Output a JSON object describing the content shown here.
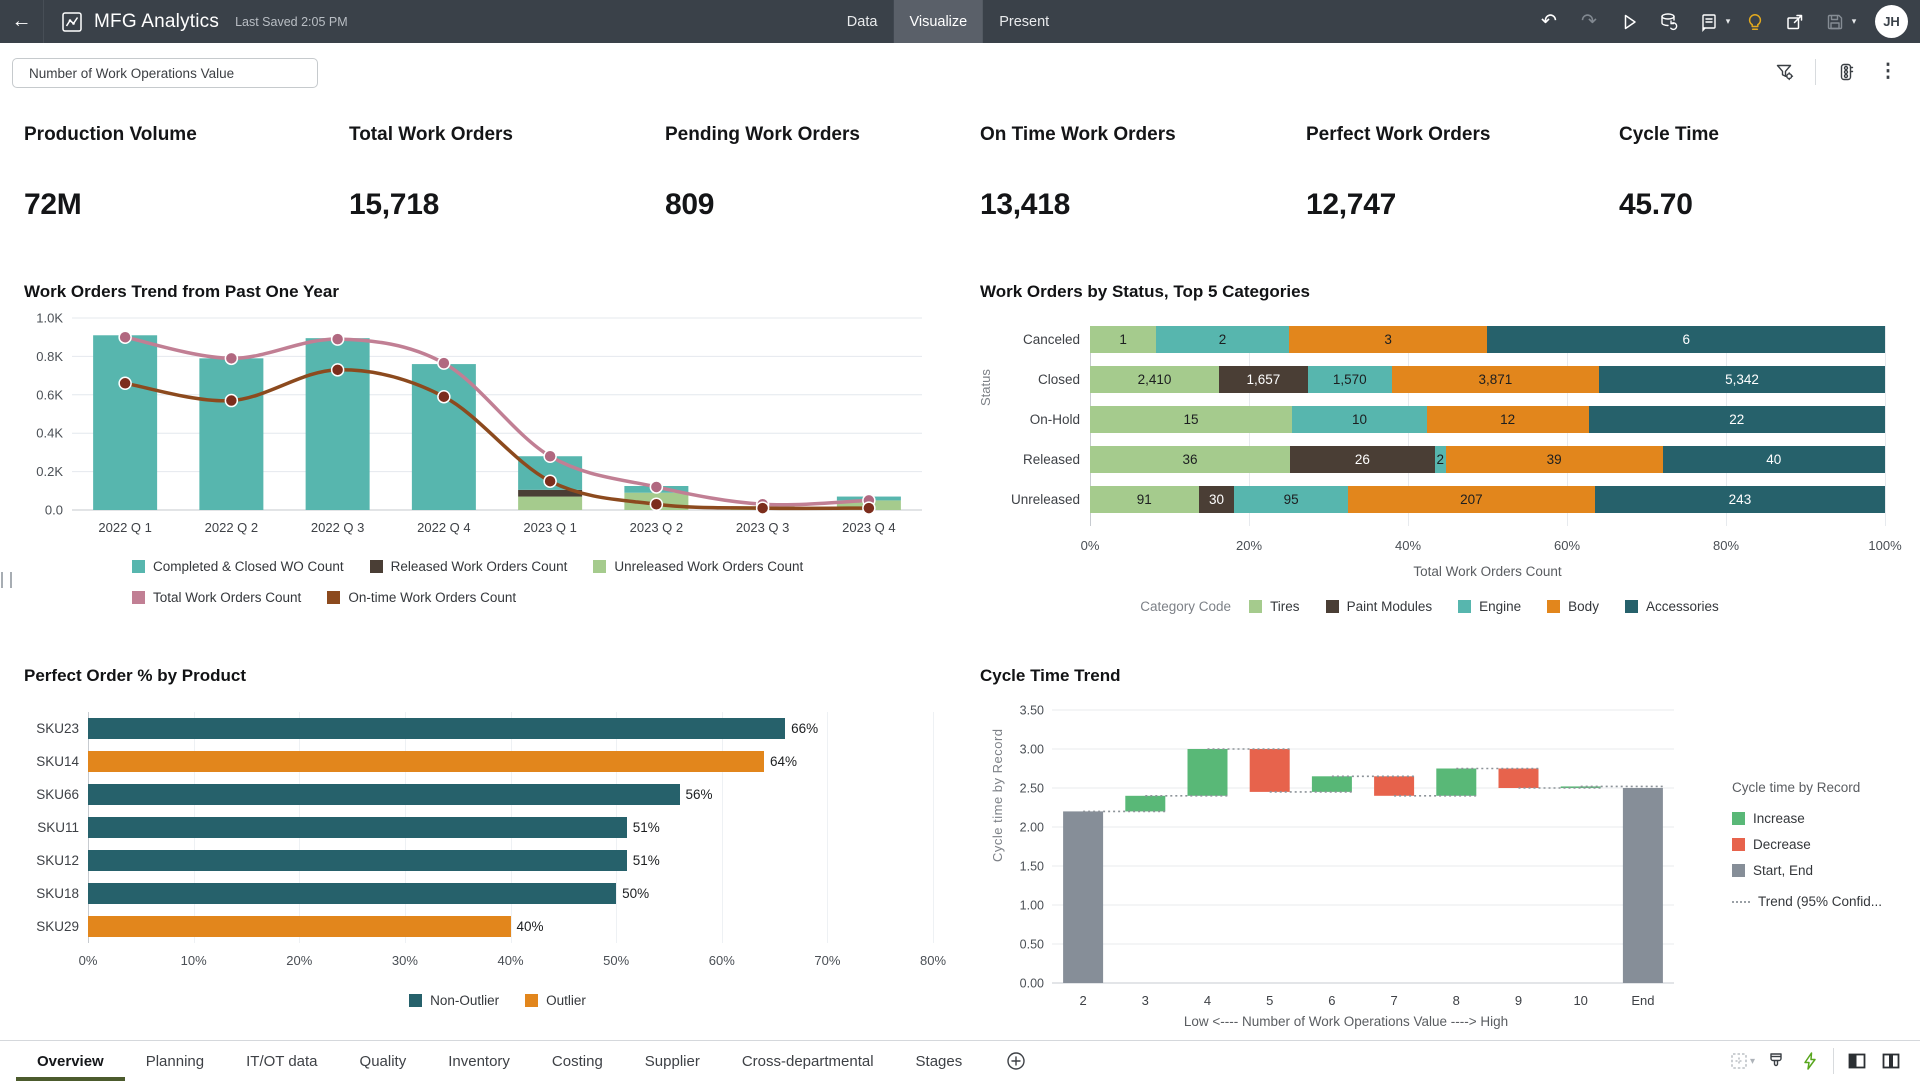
{
  "icons": {
    "back": "←",
    "undo": "↶",
    "redo": "↷",
    "caret": "▾",
    "kebab": "⋮"
  },
  "topbar": {
    "title": "MFG Analytics",
    "last_saved": "Last Saved 2:05 PM",
    "tabs": [
      {
        "label": "Data",
        "active": false
      },
      {
        "label": "Visualize",
        "active": true
      },
      {
        "label": "Present",
        "active": false
      }
    ],
    "avatar": "JH"
  },
  "controls": {
    "filter_pill": "Number of Work Operations Value"
  },
  "kpis": [
    {
      "label": "Production Volume",
      "value": "72M"
    },
    {
      "label": "Total Work Orders",
      "value": "15,718"
    },
    {
      "label": "Pending Work Orders",
      "value": "809"
    },
    {
      "label": "On Time Work Orders",
      "value": "13,418"
    },
    {
      "label": "Perfect Work Orders",
      "value": "12,747"
    },
    {
      "label": "Cycle Time",
      "value": "45.70"
    }
  ],
  "colors": {
    "topbar": "#3a4149",
    "teal": "#57b6ae",
    "lightgreen": "#a5cb8d",
    "darkbrown": "#4a3e35",
    "orange": "#e2861c",
    "darkteal": "#26616b",
    "pink": "#c17f94",
    "pink_marker": "#b16880",
    "rust": "#8c4a1e",
    "rust_marker": "#7c2d1c",
    "increase": "#59b877",
    "decrease": "#e7634c",
    "startend": "#868e98",
    "active_tab_underline": "#4c5b2d",
    "bulb": "#e3aa1e",
    "bolt": "#58a61d"
  },
  "chart_data": [
    {
      "type": "bar",
      "subtype": "combo-stacked-bar-with-lines",
      "title": "Work Orders Trend from Past One Year",
      "categories": [
        "2022 Q 1",
        "2022 Q 2",
        "2022 Q 3",
        "2022 Q 4",
        "2023 Q 1",
        "2023 Q 2",
        "2023 Q 3",
        "2023 Q 4"
      ],
      "series": [
        {
          "name": "Completed & Closed WO Count",
          "kind": "bar",
          "color_key": "teal",
          "values": [
            910,
            790,
            895,
            760,
            175,
            35,
            0,
            20
          ]
        },
        {
          "name": "Released Work Orders Count",
          "kind": "bar",
          "color_key": "darkbrown",
          "values": [
            0,
            0,
            0,
            0,
            35,
            0,
            0,
            0
          ]
        },
        {
          "name": "Unreleased Work Orders Count",
          "kind": "bar",
          "color_key": "lightgreen",
          "values": [
            0,
            0,
            0,
            0,
            70,
            90,
            20,
            50
          ]
        },
        {
          "name": "Total Work Orders Count",
          "kind": "line",
          "color_key": "pink",
          "values": [
            900,
            790,
            890,
            765,
            280,
            120,
            30,
            50
          ]
        },
        {
          "name": "On-time Work Orders Count",
          "kind": "line",
          "color_key": "rust",
          "values": [
            660,
            570,
            730,
            590,
            150,
            30,
            10,
            10
          ]
        }
      ],
      "ylim": [
        0,
        1000
      ],
      "yticks": [
        "0.0",
        "0.2K",
        "0.4K",
        "0.6K",
        "0.8K",
        "1.0K"
      ],
      "grid": true,
      "legend_position": "bottom"
    },
    {
      "type": "bar",
      "subtype": "horizontal-stacked-100pct",
      "title": "Work Orders by Status, Top 5 Categories",
      "categories": [
        "Canceled",
        "Closed",
        "On-Hold",
        "Released",
        "Unreleased"
      ],
      "series": [
        {
          "name": "Tires",
          "color_key": "lightgreen",
          "values": [
            1,
            2410,
            15,
            36,
            91
          ]
        },
        {
          "name": "Paint Modules",
          "color_key": "darkbrown",
          "values": [
            0,
            1657,
            0,
            26,
            30
          ]
        },
        {
          "name": "Engine",
          "color_key": "teal",
          "values": [
            2,
            1570,
            10,
            2,
            95
          ]
        },
        {
          "name": "Body",
          "color_key": "orange",
          "values": [
            3,
            3871,
            12,
            39,
            207
          ]
        },
        {
          "name": "Accessories",
          "color_key": "darkteal",
          "values": [
            6,
            5342,
            22,
            40,
            243
          ]
        }
      ],
      "xticks": [
        "0%",
        "20%",
        "40%",
        "60%",
        "80%",
        "100%"
      ],
      "xlabel": "Total Work Orders Count",
      "ylabel": "Status",
      "legend_title": "Category Code",
      "legend_position": "bottom"
    },
    {
      "type": "bar",
      "subtype": "horizontal",
      "title": "Perfect Order % by Product",
      "categories": [
        "SKU23",
        "SKU14",
        "SKU66",
        "SKU11",
        "SKU12",
        "SKU18",
        "SKU29"
      ],
      "values": [
        66,
        64,
        56,
        51,
        51,
        50,
        40
      ],
      "value_labels": [
        "66%",
        "64%",
        "56%",
        "51%",
        "51%",
        "50%",
        "40%"
      ],
      "outlier": [
        false,
        true,
        false,
        false,
        false,
        false,
        true
      ],
      "xlim": [
        0,
        80
      ],
      "xticks": [
        "0%",
        "10%",
        "20%",
        "30%",
        "40%",
        "50%",
        "60%",
        "70%",
        "80%"
      ],
      "legend": [
        {
          "label": "Non-Outlier",
          "color_key": "darkteal"
        },
        {
          "label": "Outlier",
          "color_key": "orange"
        }
      ],
      "legend_position": "bottom"
    },
    {
      "type": "bar",
      "subtype": "waterfall",
      "title": "Cycle Time Trend",
      "categories": [
        "2",
        "3",
        "4",
        "5",
        "6",
        "7",
        "8",
        "9",
        "10",
        "End"
      ],
      "bars": [
        {
          "cat": "2",
          "from": 0,
          "to": 2.2,
          "kind": "startend"
        },
        {
          "cat": "3",
          "from": 2.2,
          "to": 2.4,
          "kind": "increase"
        },
        {
          "cat": "4",
          "from": 2.4,
          "to": 3.0,
          "kind": "increase"
        },
        {
          "cat": "5",
          "from": 3.0,
          "to": 2.45,
          "kind": "decrease"
        },
        {
          "cat": "6",
          "from": 2.45,
          "to": 2.65,
          "kind": "increase"
        },
        {
          "cat": "7",
          "from": 2.65,
          "to": 2.4,
          "kind": "decrease"
        },
        {
          "cat": "8",
          "from": 2.4,
          "to": 2.75,
          "kind": "increase"
        },
        {
          "cat": "9",
          "from": 2.75,
          "to": 2.5,
          "kind": "decrease"
        },
        {
          "cat": "10",
          "from": 2.5,
          "to": 2.52,
          "kind": "increase"
        },
        {
          "cat": "End",
          "from": 0,
          "to": 2.5,
          "kind": "startend"
        }
      ],
      "ylim": [
        0,
        3.5
      ],
      "yticks": [
        "0.00",
        "0.50",
        "1.00",
        "1.50",
        "2.00",
        "2.50",
        "3.00",
        "3.50"
      ],
      "ylabel": "Cycle time by Record",
      "xlabel": "Low <---- Number of Work Operations Value ----> High",
      "legend_title": "Cycle time by Record",
      "legend": [
        {
          "label": "Increase",
          "color_key": "increase"
        },
        {
          "label": "Decrease",
          "color_key": "decrease"
        },
        {
          "label": "Start, End",
          "color_key": "startend"
        },
        {
          "label": "Trend (95% Confid...",
          "color_key": "trend"
        }
      ],
      "legend_position": "right"
    }
  ],
  "footer": {
    "tabs": [
      {
        "label": "Overview",
        "active": true
      },
      {
        "label": "Planning",
        "active": false
      },
      {
        "label": "IT/OT data",
        "active": false
      },
      {
        "label": "Quality",
        "active": false
      },
      {
        "label": "Inventory",
        "active": false
      },
      {
        "label": "Costing",
        "active": false
      },
      {
        "label": "Supplier",
        "active": false
      },
      {
        "label": "Cross-departmental",
        "active": false
      },
      {
        "label": "Stages",
        "active": false
      }
    ]
  }
}
